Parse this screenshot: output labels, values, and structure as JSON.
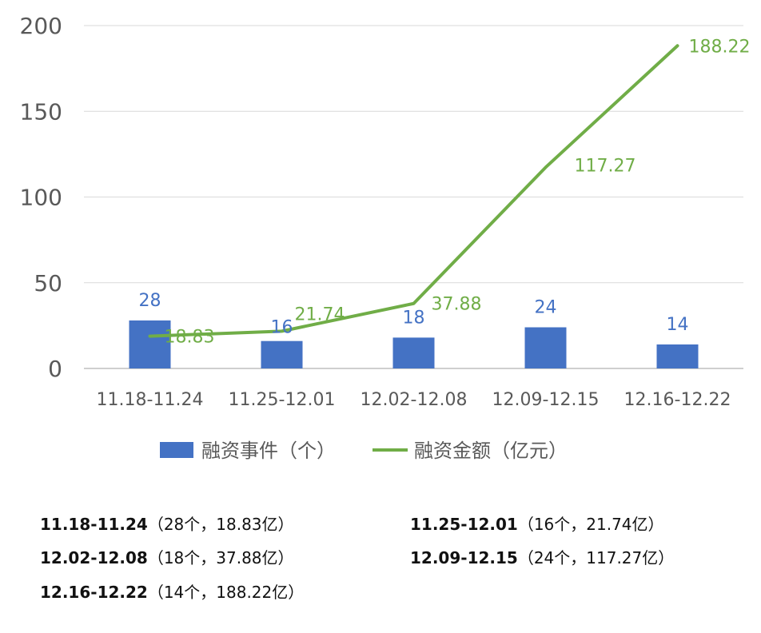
{
  "chart_data": {
    "type": "bar+line",
    "categories": [
      "11.18-11.24",
      "11.25-12.01",
      "12.02-12.08",
      "12.09-12.15",
      "12.16-12.22"
    ],
    "series": [
      {
        "name": "融资事件（个）",
        "type": "bar",
        "color": "#4472C4",
        "values": [
          28,
          16,
          18,
          24,
          14
        ]
      },
      {
        "name": "融资金额（亿元）",
        "type": "line",
        "color": "#70AD47",
        "values": [
          18.83,
          21.74,
          37.88,
          117.27,
          188.22
        ]
      }
    ],
    "ylim": [
      0,
      200
    ],
    "yticks": [
      "0",
      "50",
      "100",
      "150",
      "200"
    ],
    "grid": true,
    "legend_position": "bottom"
  },
  "summary": [
    {
      "period": "11.18-11.24",
      "detail": "（28个，18.83亿）"
    },
    {
      "period": "11.25-12.01",
      "detail": "（16个，21.74亿）"
    },
    {
      "period": "12.02-12.08",
      "detail": "（18个，37.88亿）"
    },
    {
      "period": "12.09-12.15",
      "detail": "（24个，117.27亿）"
    },
    {
      "period": "12.16-12.22",
      "detail": "（14个，188.22亿）"
    }
  ]
}
